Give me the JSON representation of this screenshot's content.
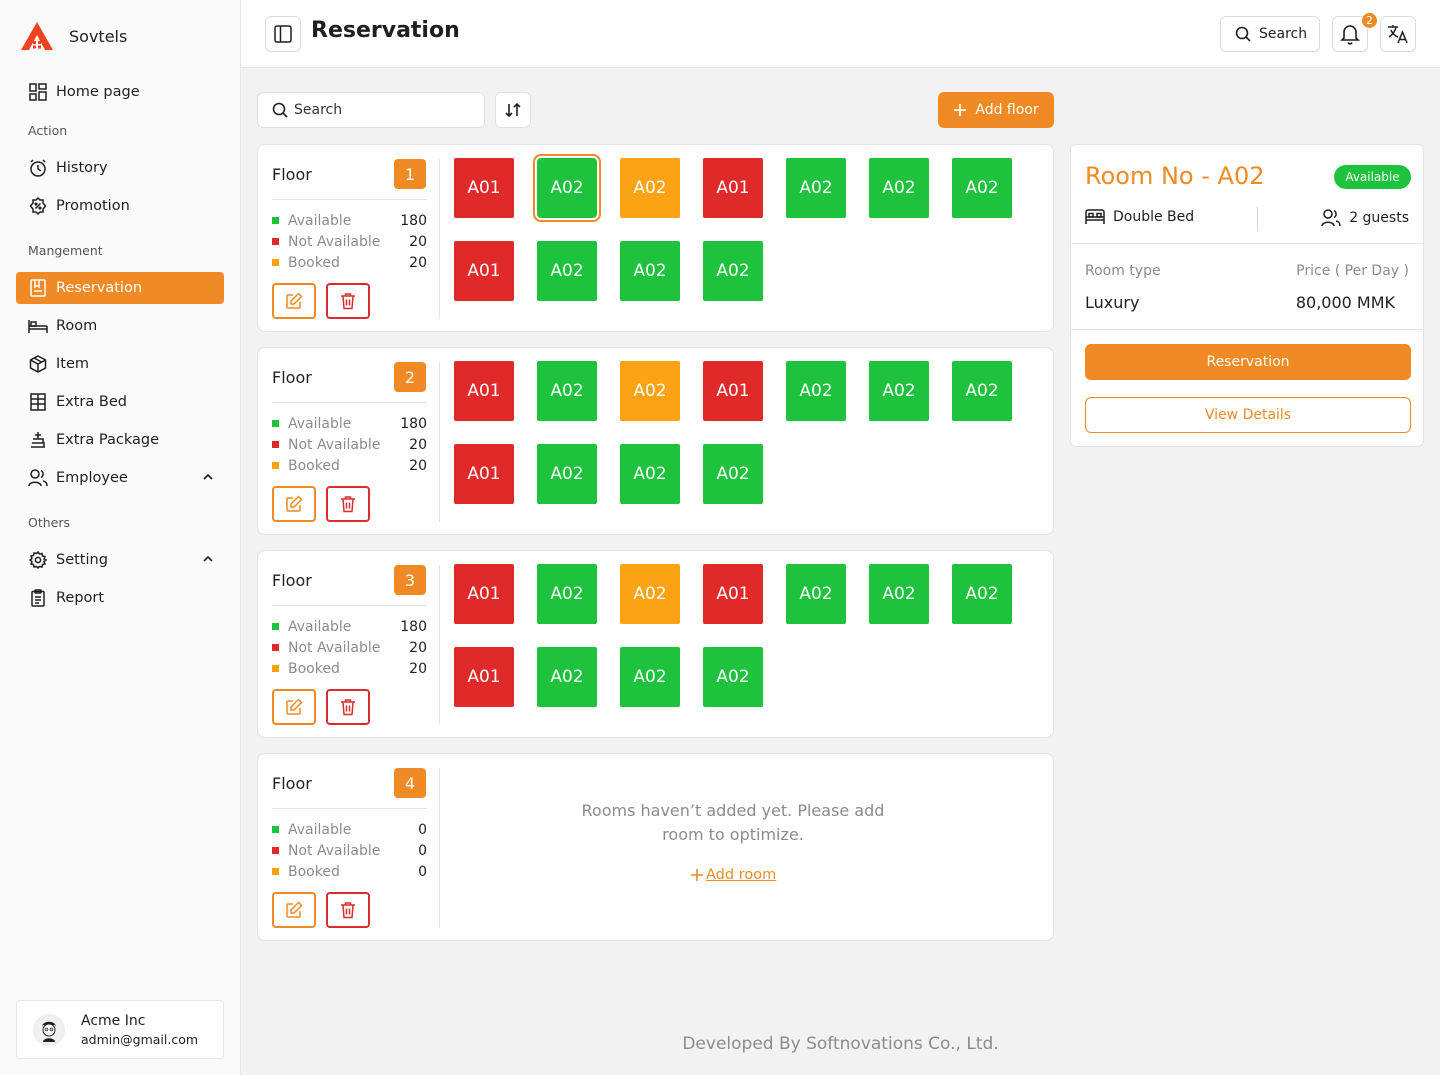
{
  "app": {
    "name": "Sovtels"
  },
  "header": {
    "title": "Reservation",
    "search_label": "Search",
    "notification_count": "2"
  },
  "sidebar": {
    "home": "Home page",
    "section_action": "Action",
    "history": "History",
    "promotion": "Promotion",
    "section_management": "Mangement",
    "reservation": "Reservation",
    "room": "Room",
    "item": "Item",
    "extra_bed": "Extra Bed",
    "extra_package": "Extra Package",
    "employee": "Employee",
    "section_others": "Others",
    "setting": "Setting",
    "report": "Report"
  },
  "user": {
    "name": "Acme Inc",
    "email": "admin@gmail.com"
  },
  "toolbar": {
    "search_placeholder": "Search",
    "add_floor": "Add floor"
  },
  "floor_common": {
    "label": "Floor",
    "available": "Available",
    "not_available": "Not Available",
    "booked": "Booked"
  },
  "floors": [
    {
      "number": "1",
      "available": "180",
      "not_available": "20",
      "booked": "20",
      "rooms": [
        {
          "name": "A01",
          "status": "red"
        },
        {
          "name": "A02",
          "status": "green",
          "selected": true
        },
        {
          "name": "A02",
          "status": "orange"
        },
        {
          "name": "A01",
          "status": "red"
        },
        {
          "name": "A02",
          "status": "green"
        },
        {
          "name": "A02",
          "status": "green"
        },
        {
          "name": "A02",
          "status": "green"
        },
        {
          "name": "A01",
          "status": "red"
        },
        {
          "name": "A02",
          "status": "green"
        },
        {
          "name": "A02",
          "status": "green"
        },
        {
          "name": "A02",
          "status": "green"
        }
      ]
    },
    {
      "number": "2",
      "available": "180",
      "not_available": "20",
      "booked": "20",
      "rooms": [
        {
          "name": "A01",
          "status": "red"
        },
        {
          "name": "A02",
          "status": "green"
        },
        {
          "name": "A02",
          "status": "orange"
        },
        {
          "name": "A01",
          "status": "red"
        },
        {
          "name": "A02",
          "status": "green"
        },
        {
          "name": "A02",
          "status": "green"
        },
        {
          "name": "A02",
          "status": "green"
        },
        {
          "name": "A01",
          "status": "red"
        },
        {
          "name": "A02",
          "status": "green"
        },
        {
          "name": "A02",
          "status": "green"
        },
        {
          "name": "A02",
          "status": "green"
        }
      ]
    },
    {
      "number": "3",
      "available": "180",
      "not_available": "20",
      "booked": "20",
      "rooms": [
        {
          "name": "A01",
          "status": "red"
        },
        {
          "name": "A02",
          "status": "green"
        },
        {
          "name": "A02",
          "status": "orange"
        },
        {
          "name": "A01",
          "status": "red"
        },
        {
          "name": "A02",
          "status": "green"
        },
        {
          "name": "A02",
          "status": "green"
        },
        {
          "name": "A02",
          "status": "green"
        },
        {
          "name": "A01",
          "status": "red"
        },
        {
          "name": "A02",
          "status": "green"
        },
        {
          "name": "A02",
          "status": "green"
        },
        {
          "name": "A02",
          "status": "green"
        }
      ]
    },
    {
      "number": "4",
      "available": "0",
      "not_available": "0",
      "booked": "0",
      "rooms": [],
      "empty_message": "Rooms haven’t added yet. Please add room to optimize.",
      "add_room": "Add room"
    }
  ],
  "detail": {
    "title": "Room No - A02",
    "status": "Available",
    "bed": "Double Bed",
    "guests": "2 guests",
    "room_type_label": "Room type",
    "room_type": "Luxury",
    "price_label": "Price ( Per Day )",
    "price": "80,000 MMK",
    "reserve_button": "Reservation",
    "view_button": "View Details"
  },
  "footer": {
    "text": "Developed By Softnovations Co., Ltd."
  },
  "colors": {
    "accent": "#f08a24",
    "available": "#1ec23c",
    "not_available": "#e02a2a",
    "booked": "#fba315"
  }
}
